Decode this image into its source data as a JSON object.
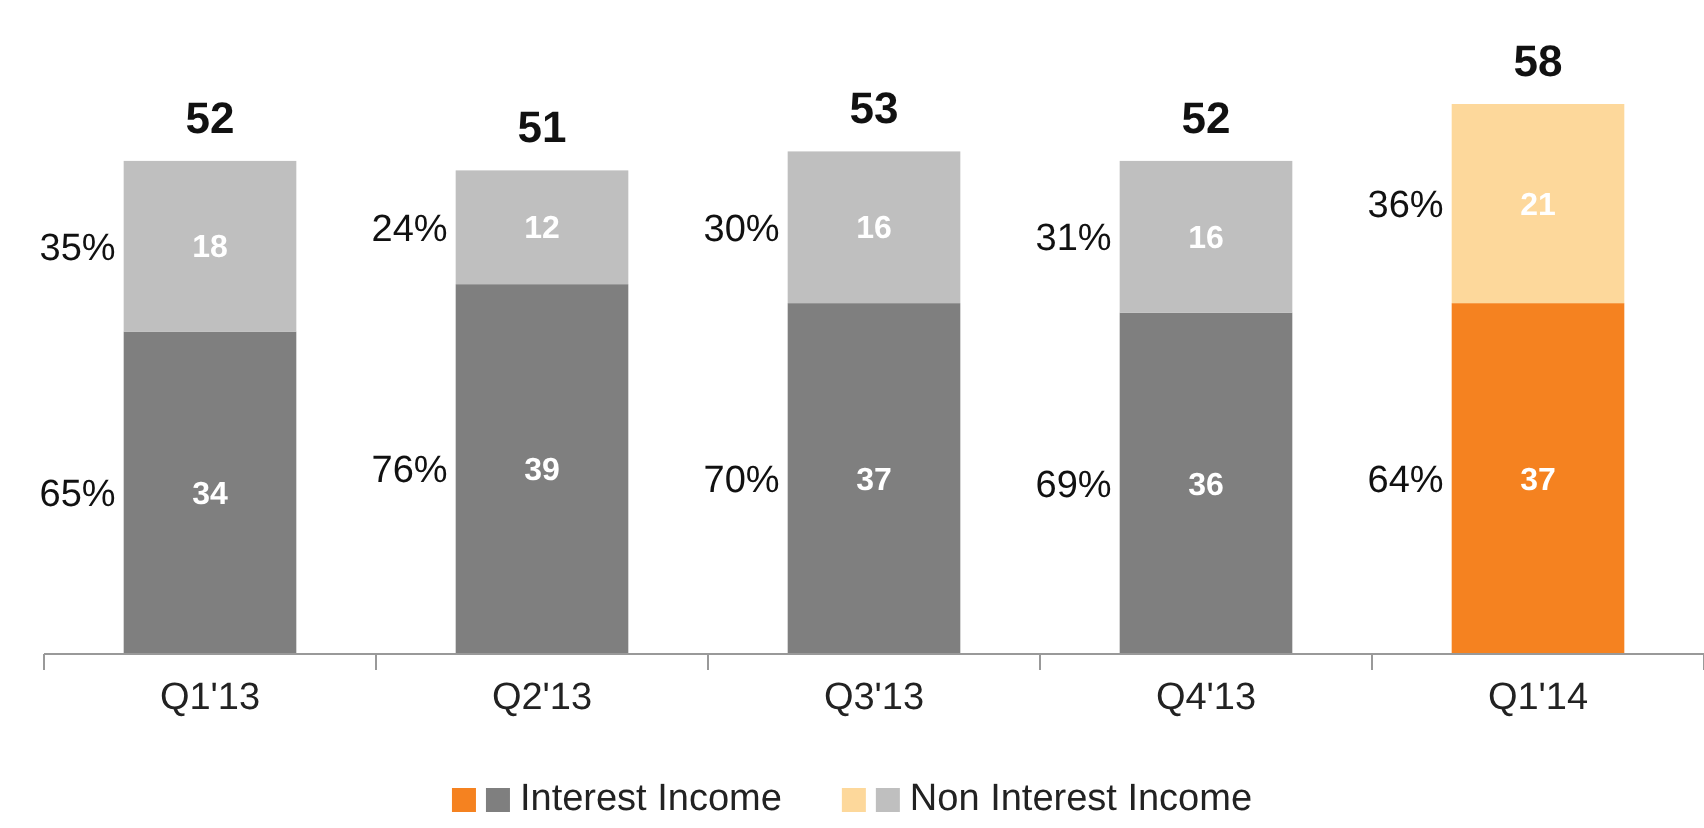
{
  "chart_data": {
    "type": "bar",
    "stacked": true,
    "data_labels": true,
    "legend": "bottom",
    "categories": [
      "Q1'13",
      "Q2'13",
      "Q3'13",
      "Q4'13",
      "Q1'14"
    ],
    "series": [
      {
        "name": "Interest Income",
        "colors": [
          "#7f7f7f",
          "#7f7f7f",
          "#7f7f7f",
          "#7f7f7f",
          "#f58220"
        ],
        "values": [
          34,
          39,
          37,
          36,
          37
        ]
      },
      {
        "name": "Non Interest Income",
        "colors": [
          "#bfbfbf",
          "#bfbfbf",
          "#bfbfbf",
          "#bfbfbf",
          "#fdd89b"
        ],
        "values": [
          18,
          12,
          16,
          16,
          21
        ]
      }
    ],
    "totals": [
      "52",
      "51",
      "53",
      "52",
      "58"
    ],
    "annotations": [
      "65%",
      "35%",
      "76%",
      "24%",
      "70%",
      "30%",
      "69%",
      "31%",
      "64%",
      "36%"
    ]
  }
}
